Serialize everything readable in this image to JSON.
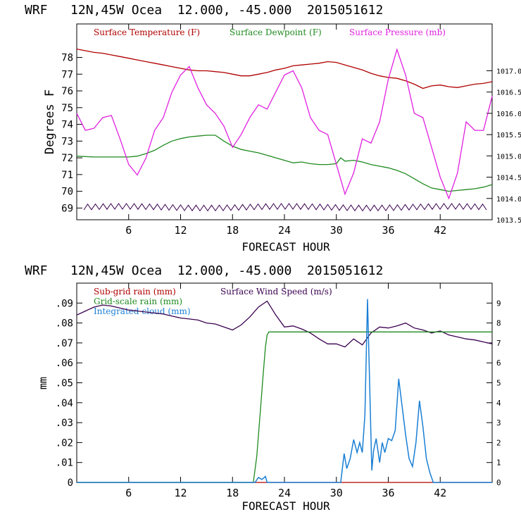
{
  "colors": {
    "temperature": "#b00000",
    "dewpoint": "#1f8a1f",
    "pressure": "#e020e0",
    "wind": "#3a0050",
    "subgrid_rain": "#b00000",
    "gridscale_rain": "#1f8a1f",
    "cloud": "#1a7fd4",
    "axes": "#000000"
  },
  "chart_data": [
    {
      "type": "line",
      "title": "WRF   12N,45W Ocea  12.000, -45.000  2015051612",
      "xlabel": "FORECAST HOUR",
      "ylabel": "Degrees F",
      "xlim": [
        0,
        48
      ],
      "ylim": [
        68.3,
        80.0
      ],
      "y2lim": [
        1013.5,
        1018.1
      ],
      "x_ticks": [
        6,
        12,
        18,
        24,
        30,
        36,
        42
      ],
      "y_ticks": [
        69,
        70,
        71,
        72,
        73,
        74,
        75,
        76,
        77,
        78
      ],
      "y2_ticks": [
        "1013.5",
        "1014.0",
        "1014.5",
        "1015.0",
        "1015.5",
        "1016.0",
        "1016.5",
        "1017.0"
      ],
      "legend": [
        "Surface Temperature (F)",
        "Surface Dewpoint (F)",
        "Surface Pressure (mb)"
      ],
      "series": [
        {
          "name": "Surface Temperature (F)",
          "axis": "left",
          "x": [
            0,
            1,
            2,
            3,
            4,
            5,
            6,
            7,
            8,
            9,
            10,
            11,
            12,
            13,
            14,
            15,
            16,
            17,
            18,
            19,
            20,
            21,
            22,
            23,
            24,
            25,
            26,
            27,
            28,
            29,
            30,
            31,
            32,
            33,
            34,
            35,
            36,
            37,
            38,
            39,
            40,
            41,
            42,
            43,
            44,
            45,
            46,
            47,
            48
          ],
          "y": [
            78.5,
            78.4,
            78.3,
            78.25,
            78.15,
            78.05,
            77.95,
            77.85,
            77.75,
            77.65,
            77.55,
            77.45,
            77.35,
            77.25,
            77.2,
            77.2,
            77.15,
            77.1,
            77.0,
            76.9,
            76.9,
            77.0,
            77.1,
            77.25,
            77.35,
            77.5,
            77.55,
            77.6,
            77.65,
            77.75,
            77.7,
            77.55,
            77.4,
            77.25,
            77.05,
            76.9,
            76.8,
            76.75,
            76.6,
            76.4,
            76.15,
            76.3,
            76.35,
            76.25,
            76.2,
            76.3,
            76.4,
            76.45,
            76.55
          ]
        },
        {
          "name": "Surface Dewpoint (F)",
          "axis": "left",
          "x": [
            0,
            2,
            4,
            6,
            7,
            8,
            9,
            10,
            11,
            12,
            13,
            14,
            15,
            16,
            17,
            18,
            19,
            20,
            21,
            22,
            23,
            24,
            25,
            26,
            27,
            28,
            29,
            30,
            30.5,
            31,
            32,
            33,
            34,
            35,
            36,
            37,
            38,
            39,
            40,
            41,
            42,
            43,
            44,
            45,
            46,
            47,
            48
          ],
          "y": [
            72.1,
            72.05,
            72.05,
            72.05,
            72.1,
            72.25,
            72.45,
            72.75,
            73.0,
            73.15,
            73.25,
            73.3,
            73.35,
            73.35,
            73.0,
            72.7,
            72.5,
            72.4,
            72.3,
            72.15,
            72.0,
            71.85,
            71.7,
            71.75,
            71.65,
            71.6,
            71.6,
            71.65,
            72.0,
            71.8,
            71.85,
            71.75,
            71.6,
            71.5,
            71.4,
            71.25,
            71.05,
            70.75,
            70.45,
            70.2,
            70.1,
            70.0,
            70.05,
            70.1,
            70.15,
            70.25,
            70.4
          ]
        },
        {
          "name": "Surface Pressure (mb)",
          "axis": "right",
          "x": [
            0,
            1,
            2,
            3,
            4,
            5,
            6,
            7,
            8,
            9,
            10,
            11,
            12,
            13,
            14,
            15,
            16,
            17,
            18,
            19,
            20,
            21,
            22,
            23,
            24,
            25,
            26,
            27,
            28,
            29,
            30,
            31,
            32,
            33,
            34,
            35,
            36,
            37,
            38,
            39,
            40,
            41,
            42,
            43,
            44,
            45,
            46,
            47,
            48
          ],
          "y": [
            1016.0,
            1015.6,
            1015.65,
            1015.9,
            1015.95,
            1015.4,
            1014.8,
            1014.55,
            1014.95,
            1015.6,
            1015.9,
            1016.5,
            1016.9,
            1017.1,
            1016.6,
            1016.2,
            1016.0,
            1015.7,
            1015.2,
            1015.5,
            1015.9,
            1016.2,
            1016.1,
            1016.5,
            1016.9,
            1017.0,
            1016.6,
            1015.9,
            1015.6,
            1015.5,
            1014.8,
            1014.1,
            1014.6,
            1015.4,
            1015.3,
            1015.8,
            1016.8,
            1017.5,
            1016.9,
            1016.0,
            1015.9,
            1015.2,
            1014.5,
            1014.0,
            1014.6,
            1015.8,
            1015.6,
            1015.6,
            1016.4
          ]
        }
      ]
    },
    {
      "type": "line",
      "title": "WRF   12N,45W Ocea  12.000, -45.000  2015051612",
      "xlabel": "FORECAST HOUR",
      "ylabel": "mm",
      "xlim": [
        0,
        48
      ],
      "ylim": [
        0,
        0.1
      ],
      "y2lim": [
        0,
        10
      ],
      "x_ticks": [
        6,
        12,
        18,
        24,
        30,
        36,
        42
      ],
      "y_ticks": [
        "0",
        ".01",
        ".02",
        ".03",
        ".04",
        ".05",
        ".06",
        ".07",
        ".08",
        ".09"
      ],
      "y2_ticks": [
        "0",
        "1",
        "2",
        "3",
        "4",
        "5",
        "6",
        "7",
        "8",
        "9"
      ],
      "legend": [
        "Sub-grid rain (mm)",
        "Surface Wind Speed (m/s)",
        "Grid-scale rain (mm)",
        "Integrated cloud (mm)"
      ],
      "series": [
        {
          "name": "Sub-grid rain (mm)",
          "axis": "left",
          "x": [
            0,
            48
          ],
          "y": [
            0,
            0
          ]
        },
        {
          "name": "Surface Wind Speed (m/s)",
          "axis": "right",
          "x": [
            0,
            1,
            2,
            3,
            4,
            5,
            6,
            7,
            8,
            9,
            10,
            11,
            12,
            13,
            14,
            15,
            16,
            17,
            18,
            19,
            20,
            21,
            22,
            23,
            24,
            25,
            26,
            27,
            28,
            29,
            30,
            31,
            32,
            33,
            34,
            35,
            36,
            37,
            38,
            39,
            40,
            41,
            42,
            43,
            44,
            45,
            46,
            47,
            48
          ],
          "y": [
            8.4,
            8.6,
            8.8,
            8.9,
            8.85,
            8.75,
            8.65,
            8.6,
            8.55,
            8.5,
            8.45,
            8.35,
            8.25,
            8.2,
            8.15,
            8.0,
            7.95,
            7.8,
            7.65,
            7.9,
            8.3,
            8.8,
            9.1,
            8.4,
            7.8,
            7.85,
            7.7,
            7.5,
            7.2,
            6.95,
            6.95,
            6.8,
            7.2,
            6.9,
            7.5,
            7.8,
            7.75,
            7.85,
            8.0,
            7.75,
            7.65,
            7.5,
            7.6,
            7.4,
            7.3,
            7.2,
            7.15,
            7.05,
            6.95
          ]
        },
        {
          "name": "Grid-scale rain (mm)",
          "axis": "left",
          "x": [
            0,
            20.4,
            20.8,
            21.2,
            21.5,
            21.8,
            22.0,
            22.2,
            48
          ],
          "y": [
            0,
            0,
            0.013,
            0.035,
            0.052,
            0.068,
            0.074,
            0.0755,
            0.0755
          ]
        },
        {
          "name": "Integrated cloud (mm)",
          "axis": "right",
          "x": [
            0,
            20.6,
            21.0,
            21.4,
            21.8,
            22.0,
            30.5,
            30.9,
            31.2,
            31.6,
            32.0,
            32.4,
            32.7,
            33.0,
            33.3,
            33.6,
            33.9,
            34.1,
            34.3,
            34.6,
            35.0,
            35.3,
            35.6,
            36.0,
            36.4,
            36.8,
            37.2,
            37.6,
            38.0,
            38.4,
            38.8,
            39.2,
            39.6,
            40.0,
            40.4,
            40.8,
            41.2,
            41.6,
            42.0,
            42.3,
            48
          ],
          "y": [
            0,
            0,
            0.25,
            0.15,
            0.3,
            0,
            0,
            1.45,
            0.7,
            1.2,
            2.15,
            1.5,
            2.0,
            1.5,
            3.4,
            9.2,
            4.0,
            0.6,
            1.6,
            2.2,
            1.0,
            2.0,
            1.5,
            2.2,
            2.1,
            2.6,
            5.2,
            3.8,
            2.4,
            1.2,
            0.8,
            2.0,
            4.1,
            2.8,
            1.2,
            0.5,
            0,
            0,
            0,
            0,
            0
          ]
        }
      ]
    }
  ]
}
